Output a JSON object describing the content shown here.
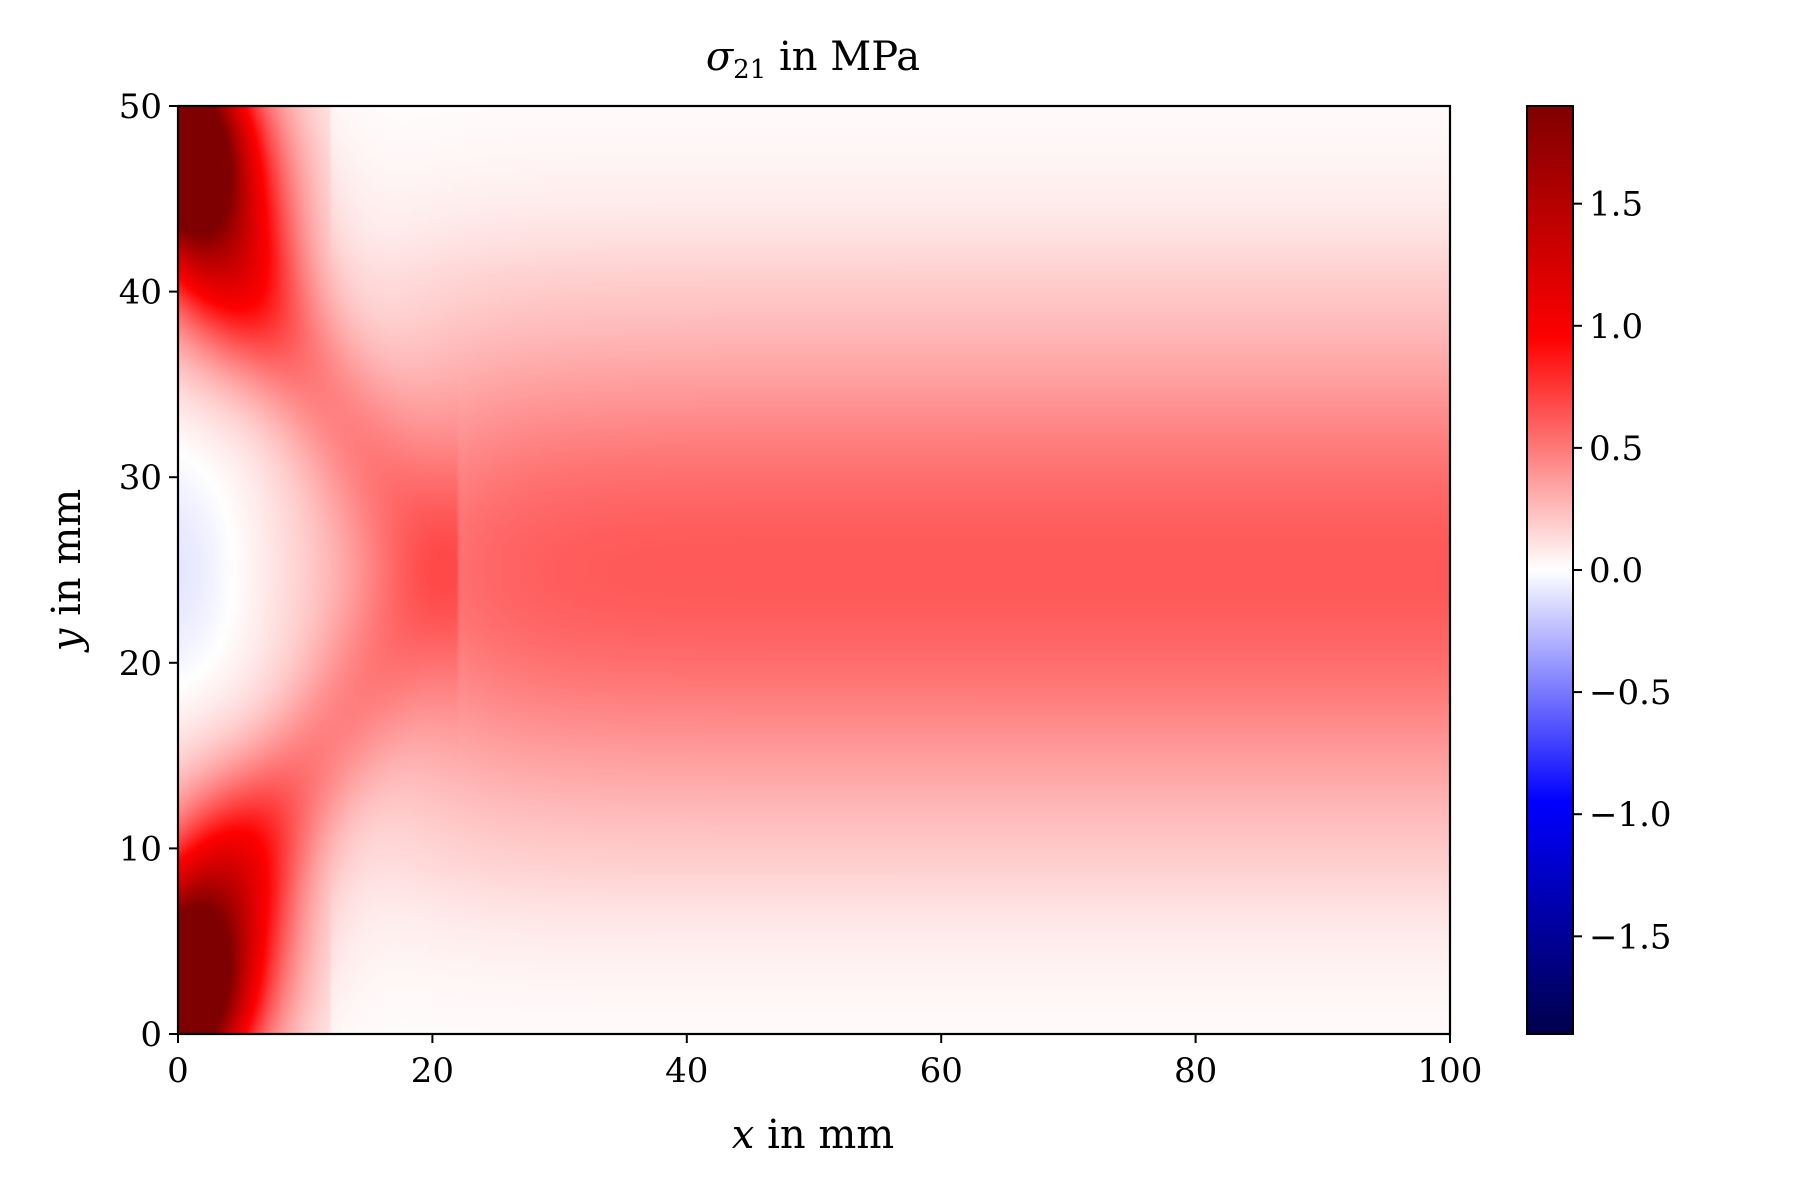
{
  "chart_data": {
    "type": "heatmap",
    "title": "σ21 in MPa",
    "title_parts": {
      "symbol": "σ",
      "subscript": "21",
      "rest": " in MPa"
    },
    "xlabel": "x in mm",
    "xlabel_parts": {
      "var": "x",
      "rest": " in mm"
    },
    "ylabel": "y in mm",
    "ylabel_parts": {
      "var": "y",
      "rest": " in mm"
    },
    "xlim": [
      0,
      100
    ],
    "ylim": [
      0,
      50
    ],
    "x_ticks": [
      0,
      20,
      40,
      60,
      80,
      100
    ],
    "x_tick_labels": [
      "0",
      "20",
      "40",
      "60",
      "80",
      "100"
    ],
    "y_ticks": [
      0,
      10,
      20,
      30,
      40,
      50
    ],
    "y_tick_labels": [
      "0",
      "10",
      "20",
      "30",
      "40",
      "50"
    ],
    "colormap": "seismic",
    "colormap_stops": [
      "#00004c",
      "#0000ff",
      "#ffffff",
      "#ff0000",
      "#7f0000"
    ],
    "clim": [
      -1.9,
      1.9
    ],
    "colorbar_ticks": [
      -1.5,
      -1.0,
      -0.5,
      0.0,
      0.5,
      1.0,
      1.5
    ],
    "colorbar_tick_labels": [
      "−1.5",
      "−1.0",
      "−0.5",
      "0.0",
      "0.5",
      "1.0",
      "1.5"
    ],
    "field_description": "shear stress concentrations near left corners (~1.9 MPa at y≈2 and y≈48), ~0.4 MPa band along center y≈25 for x>25, near zero at top/bottom edges and slightly negative near x=0,y=25"
  }
}
